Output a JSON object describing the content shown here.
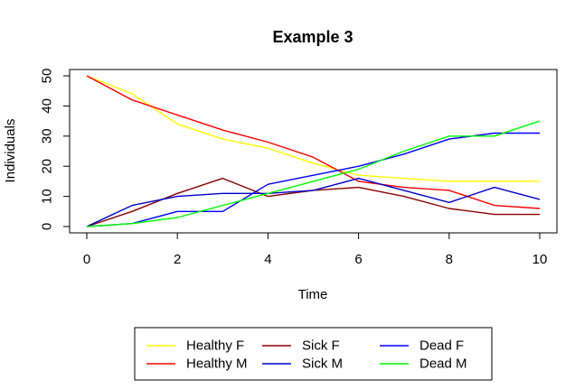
{
  "chart_data": {
    "type": "line",
    "title": "Example 3",
    "xlabel": "Time",
    "ylabel": "Individuals",
    "x": [
      0,
      1,
      2,
      3,
      4,
      5,
      6,
      7,
      8,
      9,
      10
    ],
    "xlim": [
      0,
      10
    ],
    "ylim": [
      0,
      50
    ],
    "xticks": [
      "0",
      "2",
      "4",
      "6",
      "8",
      "10"
    ],
    "yticks": [
      "0",
      "10",
      "20",
      "30",
      "40",
      "50"
    ],
    "grid": false,
    "legend_position": "bottom",
    "series": [
      {
        "name": "Healthy F",
        "color": "#ffff00",
        "values": [
          50,
          44,
          34,
          29,
          26,
          21,
          17,
          16,
          15,
          15,
          15
        ]
      },
      {
        "name": "Healthy M",
        "color": "#ff0000",
        "values": [
          50,
          42,
          37,
          32,
          28,
          23,
          15,
          13,
          12,
          7,
          6
        ]
      },
      {
        "name": "Sick F",
        "color": "#8b0000",
        "values": [
          0,
          5,
          11,
          16,
          10,
          12,
          13,
          10,
          6,
          4,
          4
        ]
      },
      {
        "name": "Sick M",
        "color": "#0000cd",
        "values": [
          0,
          7,
          10,
          11,
          11,
          12,
          16,
          12,
          8,
          13,
          9
        ]
      },
      {
        "name": "Dead F",
        "color": "#0000ff",
        "values": [
          0,
          1,
          5,
          5,
          14,
          17,
          20,
          24,
          29,
          31,
          31
        ]
      },
      {
        "name": "Dead M",
        "color": "#00ff00",
        "values": [
          0,
          1,
          3,
          7,
          11,
          15,
          19,
          25,
          30,
          30,
          35
        ]
      }
    ],
    "legend_layout": [
      [
        "Healthy F",
        "Sick F",
        "Dead F"
      ],
      [
        "Healthy M",
        "Sick M",
        "Dead M"
      ]
    ]
  }
}
